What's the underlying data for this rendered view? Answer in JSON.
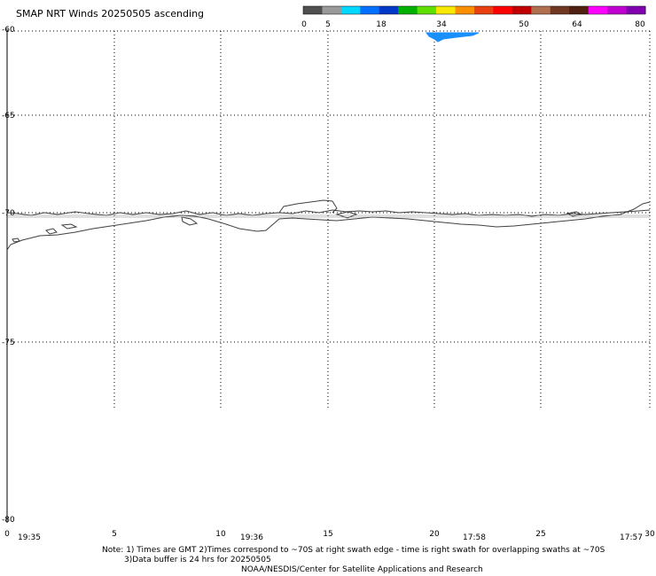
{
  "title": "SMAP NRT Winds 20250505 ascending",
  "colorbar": {
    "ticks": [
      "0",
      "5",
      "18",
      "34",
      "50",
      "64",
      "80"
    ],
    "segment_colors": [
      "#505050",
      "#9a9a9a",
      "#00d8ff",
      "#0070ff",
      "#0038c8",
      "#00b000",
      "#60e000",
      "#f8e800",
      "#f89000",
      "#e84010",
      "#ff0000",
      "#c00000",
      "#b07050",
      "#703820",
      "#502010",
      "#ff00ff",
      "#c000d0",
      "#8000b0"
    ]
  },
  "axes": {
    "lat_labels": [
      "-60",
      "-65",
      "-70",
      "-75",
      "-80"
    ],
    "lon_labels": [
      "0",
      "5",
      "10",
      "15",
      "20",
      "25",
      "30"
    ],
    "times": [
      "19:35",
      "19:36",
      "17:58",
      "17:57"
    ]
  },
  "notes": {
    "line1": "Note: 1) Times are GMT 2)Times correspond to ~70S at right swath edge - time is right swath for overlapping swaths at ~70S",
    "line2": "3)Data buffer is 24 hrs for 20250505",
    "credit": "NOAA/NESDIS/Center for Satellite Applications and Research"
  },
  "wind_swath_color": "#1a90ff",
  "coast_color": "#404040"
}
